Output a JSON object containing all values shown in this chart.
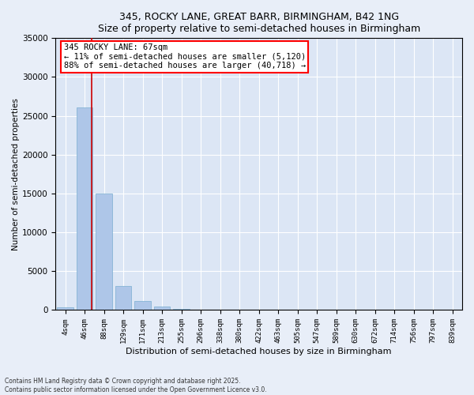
{
  "title1": "345, ROCKY LANE, GREAT BARR, BIRMINGHAM, B42 1NG",
  "title2": "Size of property relative to semi-detached houses in Birmingham",
  "xlabel": "Distribution of semi-detached houses by size in Birmingham",
  "ylabel": "Number of semi-detached properties",
  "categories": [
    "4sqm",
    "46sqm",
    "88sqm",
    "129sqm",
    "171sqm",
    "213sqm",
    "255sqm",
    "296sqm",
    "338sqm",
    "380sqm",
    "422sqm",
    "463sqm",
    "505sqm",
    "547sqm",
    "589sqm",
    "630sqm",
    "672sqm",
    "714sqm",
    "756sqm",
    "797sqm",
    "839sqm"
  ],
  "values": [
    400,
    26100,
    15000,
    3100,
    1200,
    450,
    150,
    50,
    0,
    0,
    0,
    0,
    0,
    0,
    0,
    0,
    0,
    0,
    0,
    0,
    0
  ],
  "bar_color": "#aec6e8",
  "bar_edge_color": "#7aaed0",
  "vline_color": "#cc0000",
  "annotation_title": "345 ROCKY LANE: 67sqm",
  "annotation_line1": "← 11% of semi-detached houses are smaller (5,120)",
  "annotation_line2": "88% of semi-detached houses are larger (40,718) →",
  "ylim": [
    0,
    35000
  ],
  "yticks": [
    0,
    5000,
    10000,
    15000,
    20000,
    25000,
    30000,
    35000
  ],
  "bg_color": "#e8eef8",
  "plot_bg_color": "#dce6f5",
  "footer1": "Contains HM Land Registry data © Crown copyright and database right 2025.",
  "footer2": "Contains public sector information licensed under the Open Government Licence v3.0."
}
